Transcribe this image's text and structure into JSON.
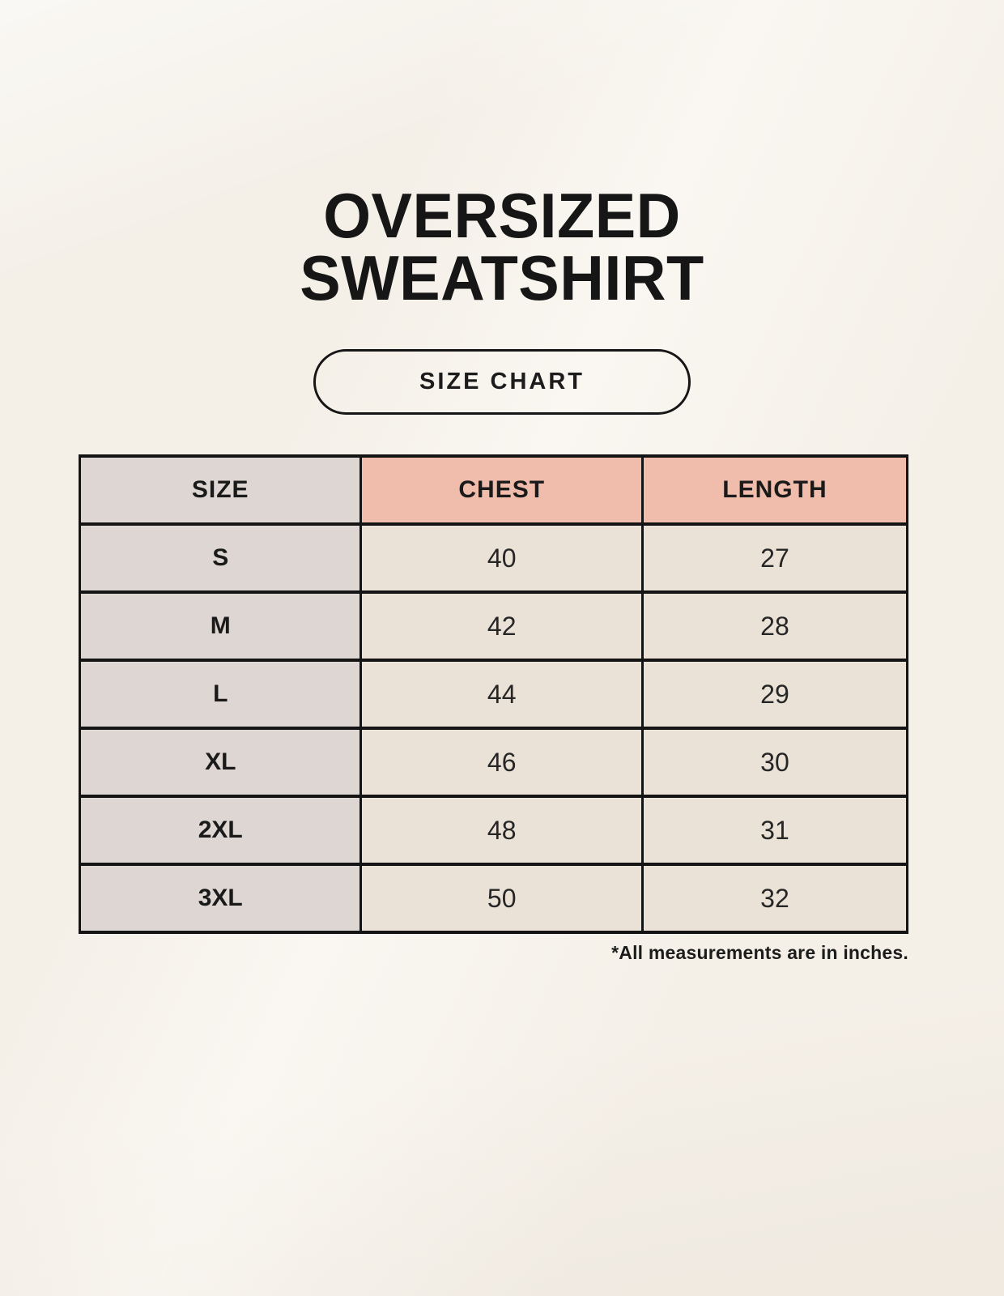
{
  "page": {
    "title": {
      "line1": "OVERSIZED",
      "line2": "SWEATSHIRT"
    },
    "badge_label": "SIZE CHART",
    "footnote": "*All measurements are in inches."
  },
  "chart_data": {
    "type": "table",
    "columns": [
      "SIZE",
      "CHEST",
      "LENGTH"
    ],
    "rows": [
      [
        "S",
        "40",
        "27"
      ],
      [
        "M",
        "42",
        "28"
      ],
      [
        "L",
        "44",
        "29"
      ],
      [
        "XL",
        "46",
        "30"
      ],
      [
        "2XL",
        "48",
        "31"
      ],
      [
        "3XL",
        "50",
        "32"
      ]
    ],
    "unit_note": "*All measurements are in inches."
  },
  "colors": {
    "background": "#f8f4ed",
    "header_accent_pink": "#f0bcab",
    "size_column_grey": "#ded6d2",
    "data_cell_cream": "#eae2d7",
    "border_black": "#141414",
    "text_black": "#1c1c1c"
  }
}
